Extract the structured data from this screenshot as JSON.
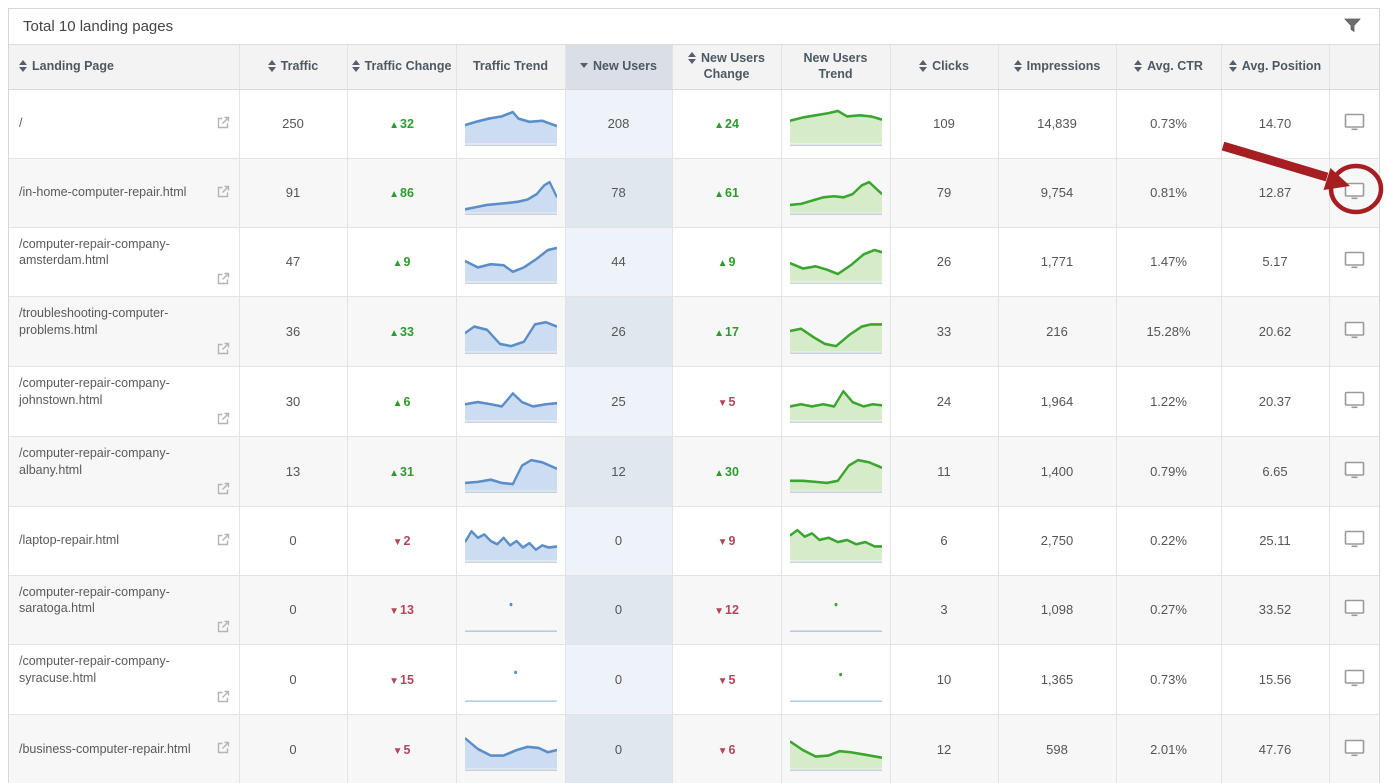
{
  "title_bar": {
    "total_label": "Total 10 landing pages"
  },
  "icons": {
    "filter": "filter-funnel-icon",
    "external_link": "external-link-icon",
    "monitor": "monitor-icon",
    "sort_both": "sort-updown-icon",
    "sort_desc": "sort-desc-icon"
  },
  "colors": {
    "blue_line": "#5b8ec9",
    "blue_fill": "#ccddf1",
    "green_line": "#3aa52f",
    "green_fill": "#d6ecc9",
    "baseline": "#c2cbd4",
    "up_green": "#2e9b2e",
    "down_red": "#b0485a",
    "highlight_header": "#d9dfe4",
    "highlight_col_odd": "#edf3f8",
    "highlight_col_even": "#e0e8ef",
    "annotation_red": "#a51e22",
    "icon_gray": "#9a9a9a"
  },
  "columns": [
    {
      "key": "page",
      "label": "Landing Page",
      "sort": "both",
      "highlight": false
    },
    {
      "key": "traffic",
      "label": "Traffic",
      "sort": "both",
      "highlight": false
    },
    {
      "key": "traffic_change",
      "label": "Traffic Change",
      "sort": "both",
      "highlight": false
    },
    {
      "key": "traffic_trend",
      "label": "Traffic Trend",
      "sort": null,
      "highlight": false
    },
    {
      "key": "new_users",
      "label": "New Users",
      "sort": "desc",
      "highlight": true
    },
    {
      "key": "new_users_change",
      "label": "New Users Change",
      "sort": "both",
      "highlight": false
    },
    {
      "key": "new_users_trend",
      "label": "New Users Trend",
      "sort": null,
      "highlight": false
    },
    {
      "key": "clicks",
      "label": "Clicks",
      "sort": "both",
      "highlight": false
    },
    {
      "key": "impressions",
      "label": "Impressions",
      "sort": "both",
      "highlight": false
    },
    {
      "key": "avg_ctr",
      "label": "Avg. CTR",
      "sort": "both",
      "highlight": false
    },
    {
      "key": "avg_position",
      "label": "Avg. Position",
      "sort": "both",
      "highlight": false
    },
    {
      "key": "actions",
      "label": "",
      "sort": null,
      "highlight": false
    }
  ],
  "rows": [
    {
      "page": "/",
      "traffic": "250",
      "traffic_change": {
        "dir": "up",
        "value": "32"
      },
      "traffic_trend": {
        "type": "area",
        "points": [
          [
            0,
            16
          ],
          [
            12,
            13
          ],
          [
            26,
            10
          ],
          [
            40,
            8
          ],
          [
            52,
            4
          ],
          [
            58,
            10
          ],
          [
            70,
            13
          ],
          [
            84,
            12
          ],
          [
            100,
            17
          ]
        ]
      },
      "new_users": "208",
      "new_users_change": {
        "dir": "up",
        "value": "24"
      },
      "new_users_trend": {
        "type": "area",
        "points": [
          [
            0,
            12
          ],
          [
            14,
            9
          ],
          [
            28,
            7
          ],
          [
            42,
            5
          ],
          [
            52,
            3
          ],
          [
            62,
            8
          ],
          [
            76,
            7
          ],
          [
            88,
            8
          ],
          [
            100,
            11
          ]
        ]
      },
      "clicks": "109",
      "impressions": "14,839",
      "avg_ctr": "0.73%",
      "avg_position": "14.70"
    },
    {
      "page": "/in-home-computer-repair.html",
      "traffic": "91",
      "traffic_change": {
        "dir": "up",
        "value": "86"
      },
      "traffic_trend": {
        "type": "area",
        "points": [
          [
            0,
            30
          ],
          [
            12,
            28
          ],
          [
            24,
            26
          ],
          [
            36,
            25
          ],
          [
            48,
            24
          ],
          [
            58,
            23
          ],
          [
            68,
            21
          ],
          [
            78,
            16
          ],
          [
            86,
            8
          ],
          [
            92,
            5
          ],
          [
            100,
            19
          ]
        ]
      },
      "new_users": "78",
      "new_users_change": {
        "dir": "up",
        "value": "61"
      },
      "new_users_trend": {
        "type": "area",
        "points": [
          [
            0,
            26
          ],
          [
            12,
            25
          ],
          [
            24,
            22
          ],
          [
            36,
            19
          ],
          [
            48,
            18
          ],
          [
            58,
            19
          ],
          [
            68,
            16
          ],
          [
            78,
            8
          ],
          [
            86,
            5
          ],
          [
            100,
            16
          ]
        ]
      },
      "clicks": "79",
      "impressions": "9,754",
      "avg_ctr": "0.81%",
      "avg_position": "12.87"
    },
    {
      "page": "/computer-repair-company-amsterdam.html",
      "traffic": "47",
      "traffic_change": {
        "dir": "up",
        "value": "9"
      },
      "traffic_trend": {
        "type": "area",
        "points": [
          [
            0,
            14
          ],
          [
            14,
            20
          ],
          [
            28,
            17
          ],
          [
            42,
            18
          ],
          [
            52,
            24
          ],
          [
            64,
            20
          ],
          [
            78,
            12
          ],
          [
            90,
            4
          ],
          [
            100,
            2
          ]
        ]
      },
      "new_users": "44",
      "new_users_change": {
        "dir": "up",
        "value": "9"
      },
      "new_users_trend": {
        "type": "area",
        "points": [
          [
            0,
            16
          ],
          [
            14,
            21
          ],
          [
            28,
            19
          ],
          [
            40,
            22
          ],
          [
            52,
            26
          ],
          [
            66,
            18
          ],
          [
            80,
            8
          ],
          [
            92,
            4
          ],
          [
            100,
            6
          ]
        ]
      },
      "clicks": "26",
      "impressions": "1,771",
      "avg_ctr": "1.47%",
      "avg_position": "5.17"
    },
    {
      "page": "/troubleshooting-computer-problems.html",
      "traffic": "36",
      "traffic_change": {
        "dir": "up",
        "value": "33"
      },
      "traffic_trend": {
        "type": "area",
        "points": [
          [
            0,
            16
          ],
          [
            10,
            10
          ],
          [
            24,
            13
          ],
          [
            38,
            26
          ],
          [
            50,
            28
          ],
          [
            64,
            24
          ],
          [
            76,
            8
          ],
          [
            88,
            6
          ],
          [
            100,
            10
          ]
        ]
      },
      "new_users": "26",
      "new_users_change": {
        "dir": "up",
        "value": "17"
      },
      "new_users_trend": {
        "type": "area",
        "points": [
          [
            0,
            14
          ],
          [
            12,
            12
          ],
          [
            26,
            20
          ],
          [
            38,
            26
          ],
          [
            50,
            28
          ],
          [
            64,
            18
          ],
          [
            78,
            10
          ],
          [
            88,
            8
          ],
          [
            100,
            8
          ]
        ]
      },
      "clicks": "33",
      "impressions": "216",
      "avg_ctr": "15.28%",
      "avg_position": "20.62"
    },
    {
      "page": "/computer-repair-company-johnstown.html",
      "traffic": "30",
      "traffic_change": {
        "dir": "up",
        "value": "6"
      },
      "traffic_trend": {
        "type": "area",
        "points": [
          [
            0,
            18
          ],
          [
            14,
            16
          ],
          [
            28,
            18
          ],
          [
            40,
            20
          ],
          [
            52,
            8
          ],
          [
            62,
            16
          ],
          [
            74,
            20
          ],
          [
            88,
            18
          ],
          [
            100,
            17
          ]
        ]
      },
      "new_users": "25",
      "new_users_change": {
        "dir": "down",
        "value": "5"
      },
      "new_users_trend": {
        "type": "area",
        "points": [
          [
            0,
            20
          ],
          [
            12,
            18
          ],
          [
            24,
            20
          ],
          [
            36,
            18
          ],
          [
            48,
            20
          ],
          [
            58,
            6
          ],
          [
            68,
            16
          ],
          [
            80,
            20
          ],
          [
            90,
            18
          ],
          [
            100,
            19
          ]
        ]
      },
      "clicks": "24",
      "impressions": "1,964",
      "avg_ctr": "1.22%",
      "avg_position": "20.37"
    },
    {
      "page": "/computer-repair-company-albany.html",
      "traffic": "13",
      "traffic_change": {
        "dir": "up",
        "value": "31"
      },
      "traffic_trend": {
        "type": "area",
        "points": [
          [
            0,
            26
          ],
          [
            14,
            25
          ],
          [
            28,
            23
          ],
          [
            40,
            26
          ],
          [
            52,
            27
          ],
          [
            62,
            10
          ],
          [
            72,
            5
          ],
          [
            84,
            7
          ],
          [
            100,
            13
          ]
        ]
      },
      "new_users": "12",
      "new_users_change": {
        "dir": "up",
        "value": "30"
      },
      "new_users_trend": {
        "type": "area",
        "points": [
          [
            0,
            24
          ],
          [
            14,
            24
          ],
          [
            28,
            25
          ],
          [
            40,
            26
          ],
          [
            52,
            24
          ],
          [
            64,
            10
          ],
          [
            74,
            5
          ],
          [
            86,
            7
          ],
          [
            100,
            12
          ]
        ]
      },
      "clicks": "11",
      "impressions": "1,400",
      "avg_ctr": "0.79%",
      "avg_position": "6.65"
    },
    {
      "page": "/laptop-repair.html",
      "traffic": "0",
      "traffic_change": {
        "dir": "down",
        "value": "2"
      },
      "traffic_trend": {
        "type": "area",
        "points": [
          [
            0,
            16
          ],
          [
            7,
            6
          ],
          [
            14,
            12
          ],
          [
            21,
            9
          ],
          [
            28,
            15
          ],
          [
            35,
            18
          ],
          [
            42,
            12
          ],
          [
            49,
            19
          ],
          [
            56,
            15
          ],
          [
            63,
            21
          ],
          [
            70,
            17
          ],
          [
            77,
            23
          ],
          [
            84,
            19
          ],
          [
            91,
            21
          ],
          [
            100,
            20
          ]
        ]
      },
      "new_users": "0",
      "new_users_change": {
        "dir": "down",
        "value": "9"
      },
      "new_users_trend": {
        "type": "area",
        "points": [
          [
            0,
            10
          ],
          [
            8,
            5
          ],
          [
            16,
            11
          ],
          [
            24,
            8
          ],
          [
            32,
            14
          ],
          [
            42,
            12
          ],
          [
            52,
            16
          ],
          [
            62,
            14
          ],
          [
            72,
            18
          ],
          [
            82,
            16
          ],
          [
            92,
            20
          ],
          [
            100,
            20
          ]
        ]
      },
      "clicks": "6",
      "impressions": "2,750",
      "avg_ctr": "0.22%",
      "avg_position": "25.11"
    },
    {
      "page": "/computer-repair-company-saratoga.html",
      "traffic": "0",
      "traffic_change": {
        "dir": "down",
        "value": "13"
      },
      "traffic_trend": {
        "type": "dot",
        "points": [
          [
            50,
            10
          ]
        ]
      },
      "new_users": "0",
      "new_users_change": {
        "dir": "down",
        "value": "12"
      },
      "new_users_trend": {
        "type": "dot",
        "points": [
          [
            50,
            10
          ]
        ]
      },
      "clicks": "3",
      "impressions": "1,098",
      "avg_ctr": "0.27%",
      "avg_position": "33.52"
    },
    {
      "page": "/computer-repair-company-syracuse.html",
      "traffic": "0",
      "traffic_change": {
        "dir": "down",
        "value": "15"
      },
      "traffic_trend": {
        "type": "dot",
        "points": [
          [
            55,
            8
          ]
        ]
      },
      "new_users": "0",
      "new_users_change": {
        "dir": "down",
        "value": "5"
      },
      "new_users_trend": {
        "type": "dot",
        "points": [
          [
            55,
            10
          ]
        ]
      },
      "clicks": "10",
      "impressions": "1,365",
      "avg_ctr": "0.73%",
      "avg_position": "15.56"
    },
    {
      "page": "/business-computer-repair.html",
      "traffic": "0",
      "traffic_change": {
        "dir": "down",
        "value": "5"
      },
      "traffic_trend": {
        "type": "area",
        "points": [
          [
            0,
            5
          ],
          [
            14,
            15
          ],
          [
            28,
            21
          ],
          [
            42,
            21
          ],
          [
            56,
            16
          ],
          [
            68,
            13
          ],
          [
            80,
            14
          ],
          [
            90,
            18
          ],
          [
            100,
            16
          ]
        ]
      },
      "new_users": "0",
      "new_users_change": {
        "dir": "down",
        "value": "6"
      },
      "new_users_trend": {
        "type": "area",
        "points": [
          [
            0,
            8
          ],
          [
            14,
            16
          ],
          [
            28,
            22
          ],
          [
            42,
            21
          ],
          [
            54,
            17
          ],
          [
            66,
            18
          ],
          [
            80,
            20
          ],
          [
            100,
            23
          ]
        ]
      },
      "clicks": "12",
      "impressions": "598",
      "avg_ctr": "2.01%",
      "avg_position": "47.76"
    }
  ],
  "annotation": {
    "description": "red arrow pointing to circled monitor icon on row 2",
    "target_row_index": 1,
    "color": "#a51e22"
  }
}
